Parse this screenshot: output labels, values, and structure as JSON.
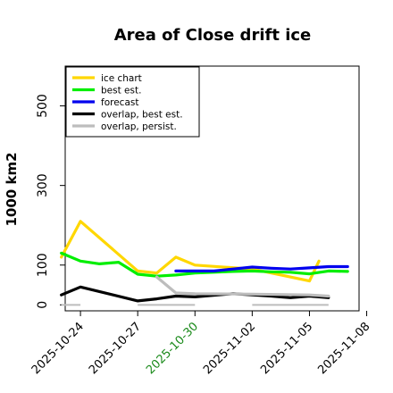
{
  "chart_data": {
    "type": "line",
    "title": "Area of Close drift ice",
    "ylabel": "1000 km2",
    "yticks": [
      0,
      100,
      300,
      500
    ],
    "ylim": [
      -15,
      600
    ],
    "xlim": [
      -0.8,
      14.6
    ],
    "xtick_positions": [
      0,
      3,
      6,
      9,
      12,
      15
    ],
    "xtick_labels": [
      "2025-10-24",
      "2025-10-27",
      "2025-10-30",
      "2025-11-02",
      "2025-11-05",
      "2025-11-08"
    ],
    "highlight_tick_index": 2,
    "highlight_color": "#1a8a1a",
    "legend_position": "top-left",
    "series": [
      {
        "name": "ice chart",
        "color": "#ffd700",
        "width": 3.2,
        "points": [
          [
            -1,
            120
          ],
          [
            0,
            210
          ],
          [
            3,
            85
          ],
          [
            4,
            80
          ],
          [
            5,
            120
          ],
          [
            6,
            100
          ],
          [
            9,
            90
          ],
          [
            12,
            60
          ],
          [
            12.5,
            110
          ]
        ]
      },
      {
        "name": "best est.",
        "color": "#00ee00",
        "width": 3.2,
        "points": [
          [
            -1,
            130
          ],
          [
            0,
            110
          ],
          [
            1,
            103
          ],
          [
            2,
            107
          ],
          [
            3,
            77
          ],
          [
            4,
            72
          ],
          [
            5,
            75
          ],
          [
            6,
            80
          ],
          [
            7,
            82
          ],
          [
            8,
            84
          ],
          [
            9,
            85
          ],
          [
            10,
            83
          ],
          [
            11,
            82
          ],
          [
            12,
            78
          ],
          [
            13,
            85
          ],
          [
            14,
            84
          ]
        ]
      },
      {
        "name": "forecast",
        "color": "#0000ee",
        "width": 3.2,
        "points": [
          [
            5,
            85
          ],
          [
            6,
            85
          ],
          [
            7,
            85
          ],
          [
            8,
            90
          ],
          [
            9,
            95
          ],
          [
            10,
            92
          ],
          [
            11,
            90
          ],
          [
            12,
            93
          ],
          [
            13,
            96
          ],
          [
            14,
            96
          ]
        ]
      },
      {
        "name": "overlap, best est.",
        "color": "#000000",
        "width": 3.2,
        "points": [
          [
            -1,
            25
          ],
          [
            0,
            45
          ],
          [
            3,
            10
          ],
          [
            4,
            15
          ],
          [
            5,
            22
          ],
          [
            6,
            20
          ],
          [
            8,
            28
          ],
          [
            9,
            25
          ],
          [
            10,
            22
          ],
          [
            11,
            18
          ],
          [
            12,
            22
          ],
          [
            13,
            18
          ]
        ]
      },
      {
        "name": "overlap, persist.",
        "color": "#bdbdbd",
        "width": 3.2,
        "points": [
          [
            4,
            70
          ],
          [
            5,
            30
          ],
          [
            6,
            28
          ],
          [
            9,
            27
          ],
          [
            12,
            25
          ],
          [
            13,
            22
          ]
        ]
      }
    ],
    "thin_lines": [
      {
        "color": "#ffd700",
        "width": 1,
        "points": [
          [
            0,
            210
          ],
          [
            3,
            85
          ]
        ]
      },
      {
        "color": "#000000",
        "width": 1,
        "points": [
          [
            0,
            45
          ],
          [
            3,
            10
          ]
        ]
      }
    ],
    "zero_segments": [
      {
        "color": "#bdbdbd",
        "x": [
          -1,
          0
        ]
      },
      {
        "color": "#bdbdbd",
        "x": [
          3,
          6
        ]
      },
      {
        "color": "#bdbdbd",
        "x": [
          9,
          13
        ]
      }
    ]
  }
}
